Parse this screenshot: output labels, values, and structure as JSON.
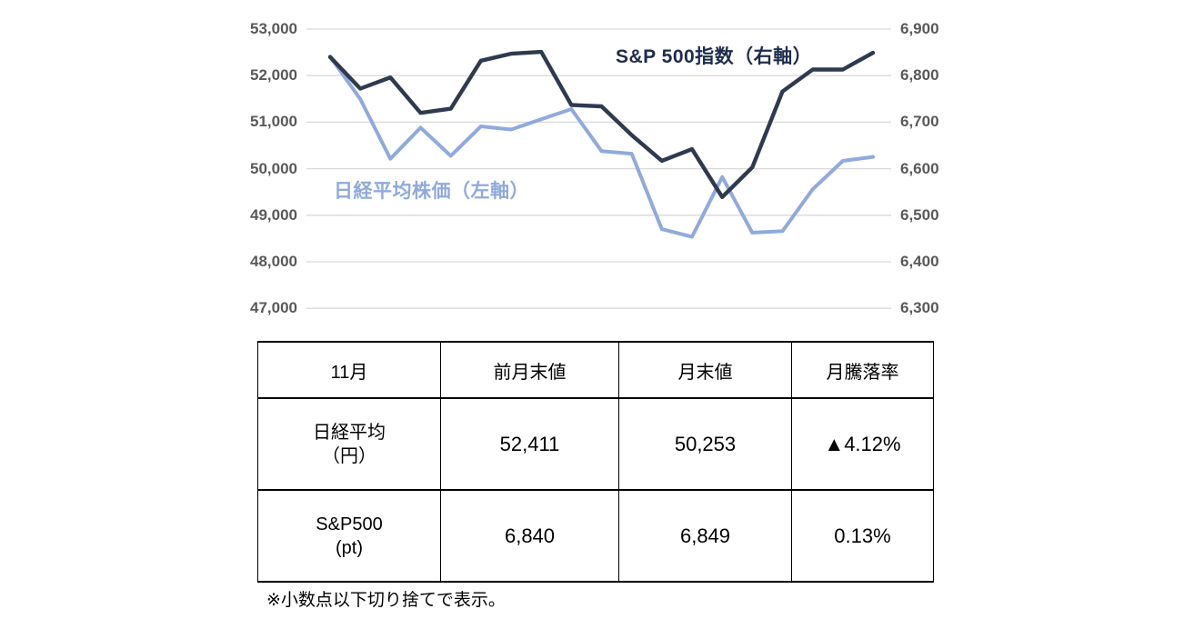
{
  "chart": {
    "series_labels": {
      "sp500": "S&P 500指数（右軸）",
      "nikkei": "日経平均株価（左軸）"
    },
    "colors": {
      "nikkei_line": "#8FAADC",
      "sp500_line": "#2E3A50",
      "gridline": "#D9D9D9",
      "axis_text": "#595959"
    }
  },
  "chart_data": {
    "type": "line",
    "title": "",
    "xlabel": "",
    "ylabel_left": "日経平均株価",
    "ylabel_right": "S&P 500指数",
    "grid": true,
    "legend_position": "inline-annotations",
    "x": [
      1,
      2,
      3,
      4,
      5,
      6,
      7,
      8,
      9,
      10,
      11,
      12,
      13,
      14,
      15,
      16,
      17,
      18,
      19
    ],
    "left_axis": {
      "tick_labels": [
        "53,000",
        "52,000",
        "51,000",
        "50,000",
        "49,000",
        "48,000",
        "47,000"
      ],
      "tick_values": [
        53000,
        52000,
        51000,
        50000,
        49000,
        48000,
        47000
      ],
      "range": [
        47000,
        53000
      ]
    },
    "right_axis": {
      "tick_labels": [
        "6,900",
        "6,800",
        "6,700",
        "6,600",
        "6,500",
        "6,400",
        "6,300"
      ],
      "tick_values": [
        6900,
        6800,
        6700,
        6600,
        6500,
        6400,
        6300
      ],
      "range": [
        6300,
        6900
      ]
    },
    "series": [
      {
        "name": "日経平均株価（左軸）",
        "axis": "left",
        "color": "#8FAADC",
        "stroke_width": 4,
        "values": [
          52411,
          51497,
          50212,
          50883,
          50276,
          50911,
          50842,
          51063,
          51281,
          50376,
          50323,
          48702,
          48537,
          49823,
          48625,
          48659,
          49559,
          50167,
          50253
        ]
      },
      {
        "name": "S&P 500指数（右軸）",
        "axis": "right",
        "color": "#2E3A50",
        "stroke_width": 4.4,
        "values": [
          6840,
          6772,
          6796,
          6720,
          6729,
          6832,
          6847,
          6851,
          6737,
          6734,
          6672,
          6617,
          6642,
          6539,
          6603,
          6766,
          6813,
          6813,
          6849
        ]
      }
    ]
  },
  "table": {
    "headers": [
      "11月",
      "前月末値",
      "月末値",
      "月騰落率"
    ],
    "rows": [
      {
        "label": "日経平均\n（円）",
        "prev_close": "52,411",
        "month_close": "50,253",
        "change": "▲4.12%"
      },
      {
        "label": "S&P500\n(pt)",
        "prev_close": "6,840",
        "month_close": "6,849",
        "change": "0.13%"
      }
    ]
  },
  "footnote": "※小数点以下切り捨てで表示。"
}
